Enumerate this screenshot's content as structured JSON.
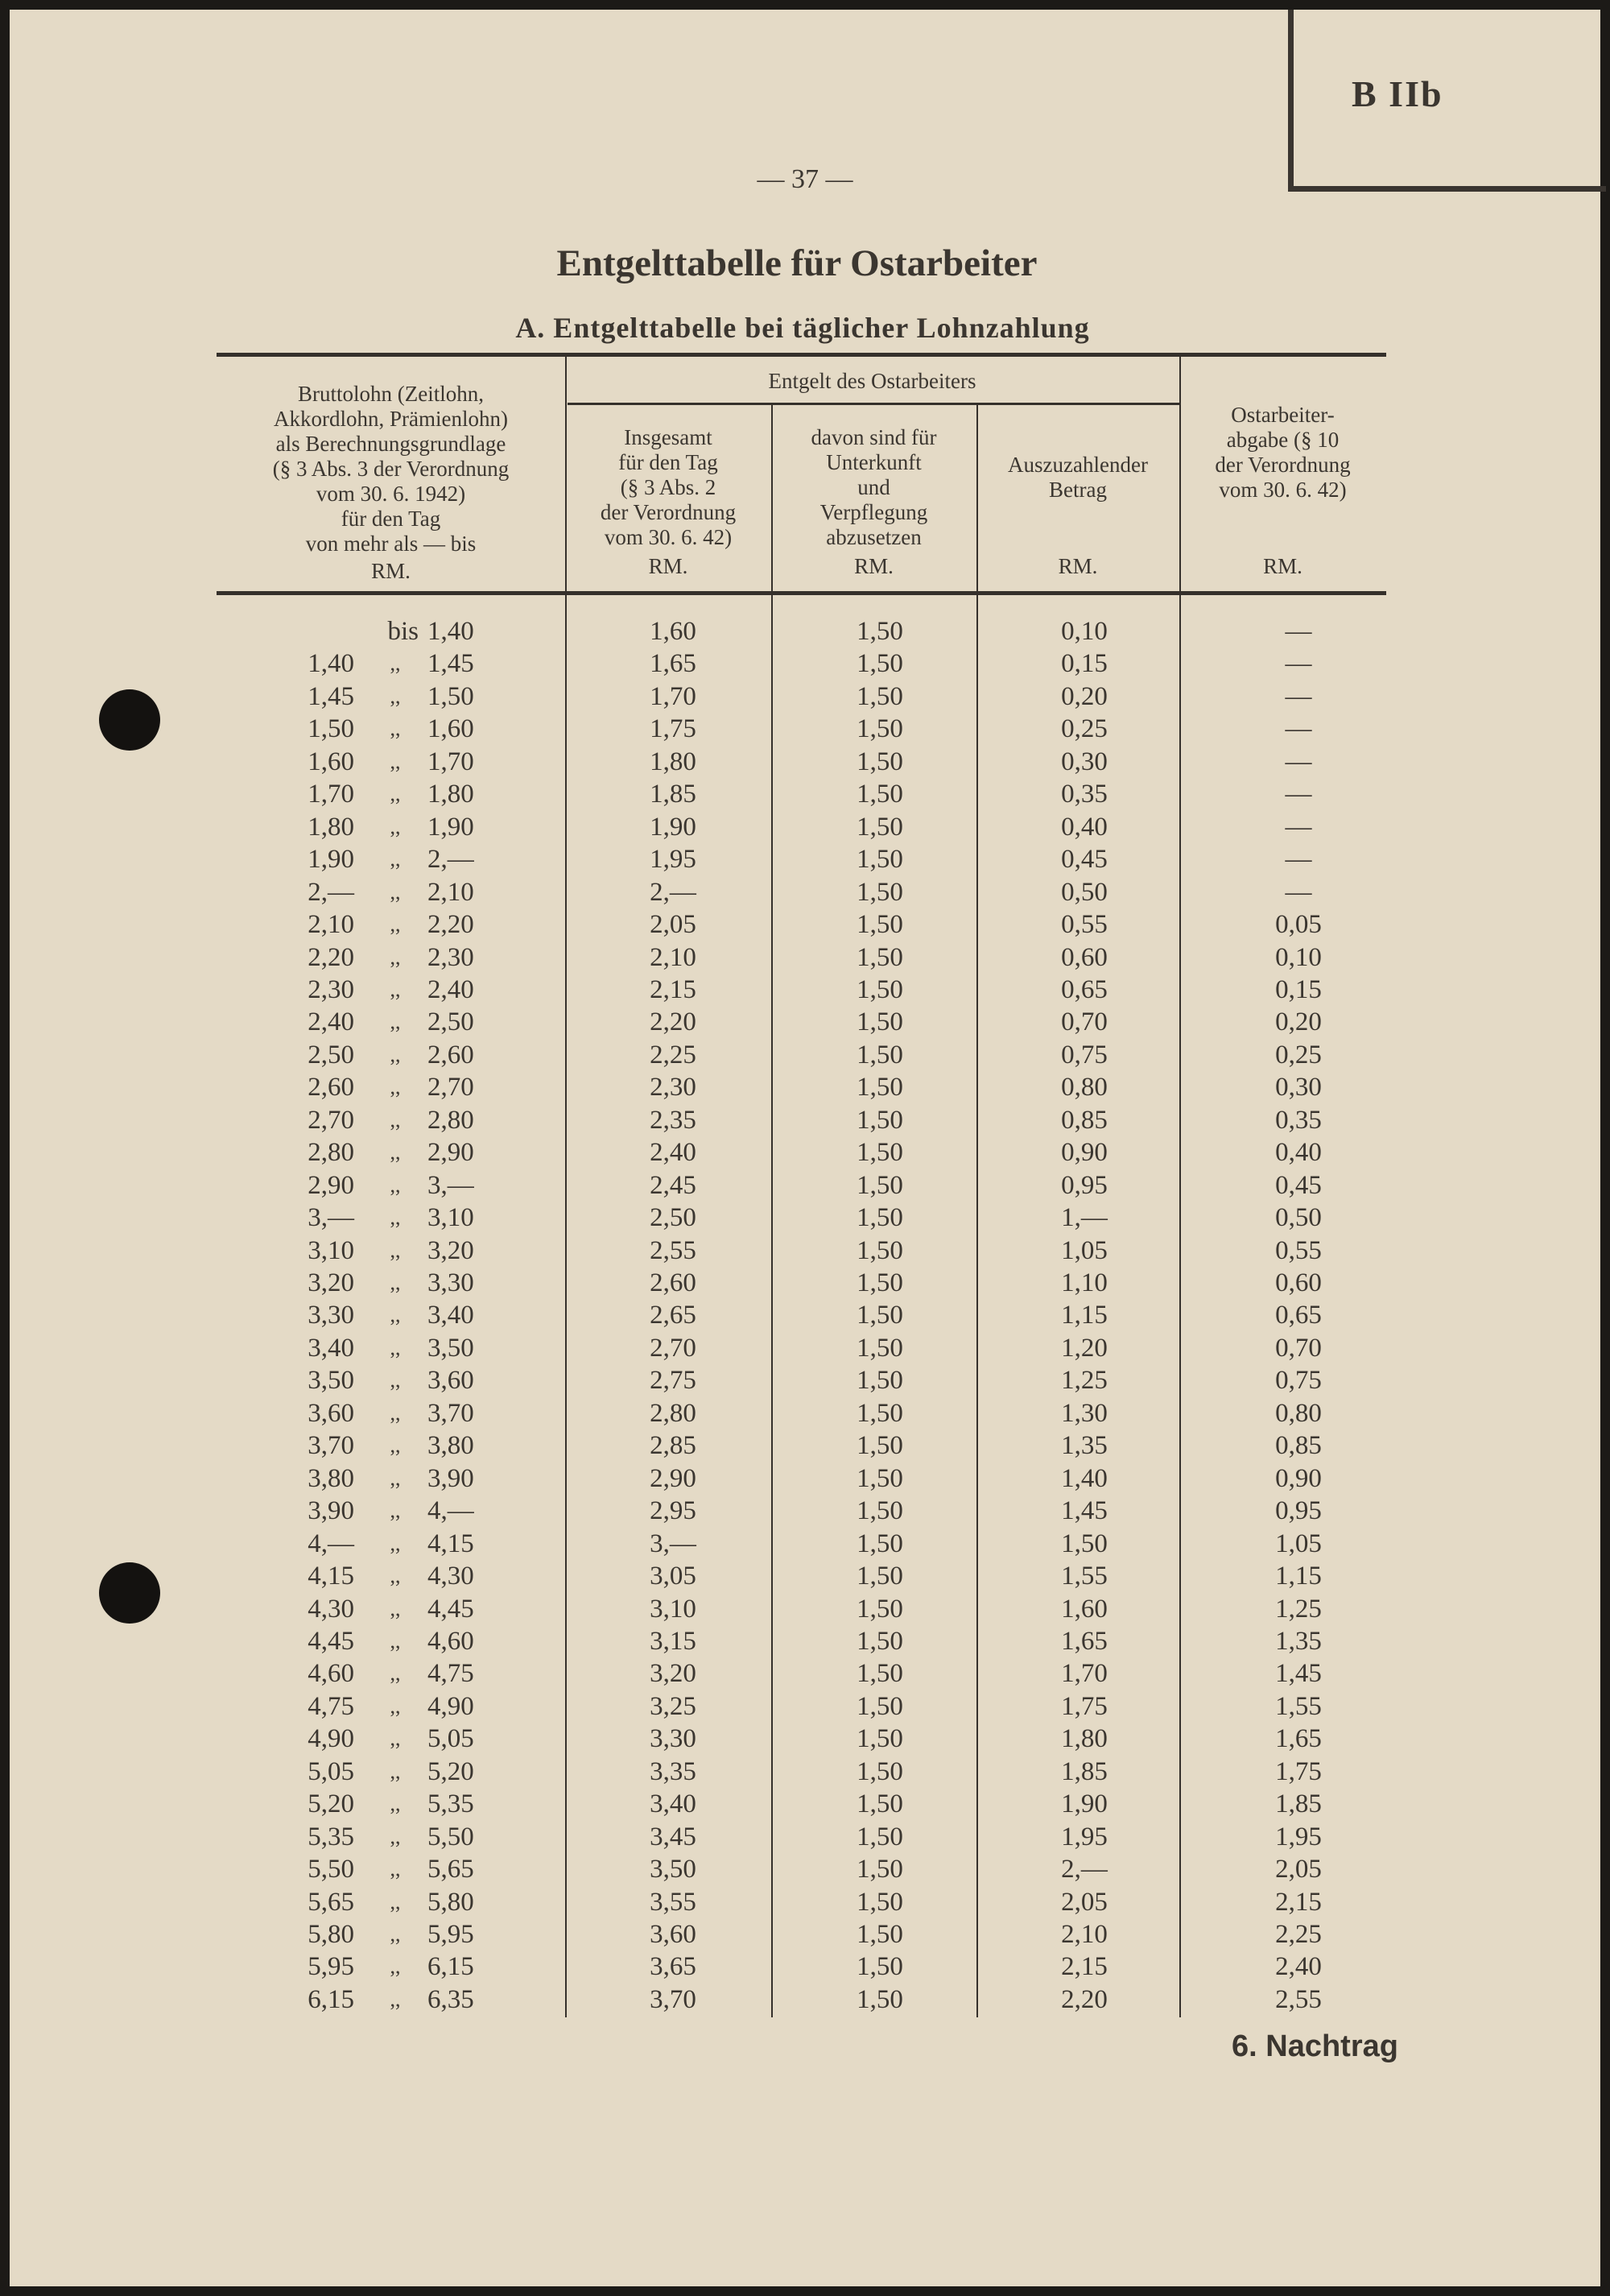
{
  "corner_label": "B IIb",
  "page_number": "— 37 —",
  "title": "Entgelttabelle für Ostarbeiter",
  "subtitle": "A. Entgelttabelle bei täglicher Lohnzahlung",
  "footer": "6. Nachtrag",
  "table": {
    "group_header": "Entgelt des Ostarbeiters",
    "columns": [
      {
        "lines": [
          "Bruttolohn (Zeitlohn,",
          "Akkordlohn, Prämienlohn)",
          "als  Berechnungsgrundlage",
          "(§ 3 Abs. 3 der Verordnung",
          "vom 30. 6. 1942)",
          "für den Tag",
          "von mehr als — bis"
        ],
        "unit": "RM."
      },
      {
        "lines": [
          "Insgesamt",
          "für den Tag",
          "(§ 3 Abs. 2",
          "der Verordnung",
          "vom 30. 6. 42)"
        ],
        "unit": "RM."
      },
      {
        "lines": [
          "davon sind für",
          "Unterkunft",
          "und",
          "Verpflegung",
          "abzusetzen"
        ],
        "unit": "RM."
      },
      {
        "lines": [
          "Auszuzahlender",
          "Betrag"
        ],
        "unit": "RM."
      },
      {
        "lines": [
          "Ostarbeiter-",
          "abgabe (§ 10",
          "der Verordnung",
          "vom 30. 6. 42)"
        ],
        "unit": "RM."
      }
    ],
    "rows": [
      [
        "",
        "bis",
        "1,40",
        "1,60",
        "1,50",
        "0,10",
        "—"
      ],
      [
        "1,40",
        ",,",
        "1,45",
        "1,65",
        "1,50",
        "0,15",
        "—"
      ],
      [
        "1,45",
        ",,",
        "1,50",
        "1,70",
        "1,50",
        "0,20",
        "—"
      ],
      [
        "1,50",
        ",,",
        "1,60",
        "1,75",
        "1,50",
        "0,25",
        "—"
      ],
      [
        "1,60",
        ",,",
        "1,70",
        "1,80",
        "1,50",
        "0,30",
        "—"
      ],
      [
        "1,70",
        ",,",
        "1,80",
        "1,85",
        "1,50",
        "0,35",
        "—"
      ],
      [
        "1,80",
        ",,",
        "1,90",
        "1,90",
        "1,50",
        "0,40",
        "—"
      ],
      [
        "1,90",
        ",,",
        "2,—",
        "1,95",
        "1,50",
        "0,45",
        "—"
      ],
      [
        "2,—",
        ",,",
        "2,10",
        "2,—",
        "1,50",
        "0,50",
        "—"
      ],
      [
        "2,10",
        ",,",
        "2,20",
        "2,05",
        "1,50",
        "0,55",
        "0,05"
      ],
      [
        "2,20",
        ",,",
        "2,30",
        "2,10",
        "1,50",
        "0,60",
        "0,10"
      ],
      [
        "2,30",
        ",,",
        "2,40",
        "2,15",
        "1,50",
        "0,65",
        "0,15"
      ],
      [
        "2,40",
        ",,",
        "2,50",
        "2,20",
        "1,50",
        "0,70",
        "0,20"
      ],
      [
        "2,50",
        ",,",
        "2,60",
        "2,25",
        "1,50",
        "0,75",
        "0,25"
      ],
      [
        "2,60",
        ",,",
        "2,70",
        "2,30",
        "1,50",
        "0,80",
        "0,30"
      ],
      [
        "2,70",
        ",,",
        "2,80",
        "2,35",
        "1,50",
        "0,85",
        "0,35"
      ],
      [
        "2,80",
        ",,",
        "2,90",
        "2,40",
        "1,50",
        "0,90",
        "0,40"
      ],
      [
        "2,90",
        ",,",
        "3,—",
        "2,45",
        "1,50",
        "0,95",
        "0,45"
      ],
      [
        "3,—",
        ",,",
        "3,10",
        "2,50",
        "1,50",
        "1,—",
        "0,50"
      ],
      [
        "3,10",
        ",,",
        "3,20",
        "2,55",
        "1,50",
        "1,05",
        "0,55"
      ],
      [
        "3,20",
        ",,",
        "3,30",
        "2,60",
        "1,50",
        "1,10",
        "0,60"
      ],
      [
        "3,30",
        ",,",
        "3,40",
        "2,65",
        "1,50",
        "1,15",
        "0,65"
      ],
      [
        "3,40",
        ",,",
        "3,50",
        "2,70",
        "1,50",
        "1,20",
        "0,70"
      ],
      [
        "3,50",
        ",,",
        "3,60",
        "2,75",
        "1,50",
        "1,25",
        "0,75"
      ],
      [
        "3,60",
        ",,",
        "3,70",
        "2,80",
        "1,50",
        "1,30",
        "0,80"
      ],
      [
        "3,70",
        ",,",
        "3,80",
        "2,85",
        "1,50",
        "1,35",
        "0,85"
      ],
      [
        "3,80",
        ",,",
        "3,90",
        "2,90",
        "1,50",
        "1,40",
        "0,90"
      ],
      [
        "3,90",
        ",,",
        "4,—",
        "2,95",
        "1,50",
        "1,45",
        "0,95"
      ],
      [
        "4,—",
        ",,",
        "4,15",
        "3,—",
        "1,50",
        "1,50",
        "1,05"
      ],
      [
        "4,15",
        ",,",
        "4,30",
        "3,05",
        "1,50",
        "1,55",
        "1,15"
      ],
      [
        "4,30",
        ",,",
        "4,45",
        "3,10",
        "1,50",
        "1,60",
        "1,25"
      ],
      [
        "4,45",
        ",,",
        "4,60",
        "3,15",
        "1,50",
        "1,65",
        "1,35"
      ],
      [
        "4,60",
        ",,",
        "4,75",
        "3,20",
        "1,50",
        "1,70",
        "1,45"
      ],
      [
        "4,75",
        ",,",
        "4,90",
        "3,25",
        "1,50",
        "1,75",
        "1,55"
      ],
      [
        "4,90",
        ",,",
        "5,05",
        "3,30",
        "1,50",
        "1,80",
        "1,65"
      ],
      [
        "5,05",
        ",,",
        "5,20",
        "3,35",
        "1,50",
        "1,85",
        "1,75"
      ],
      [
        "5,20",
        ",,",
        "5,35",
        "3,40",
        "1,50",
        "1,90",
        "1,85"
      ],
      [
        "5,35",
        ",,",
        "5,50",
        "3,45",
        "1,50",
        "1,95",
        "1,95"
      ],
      [
        "5,50",
        ",,",
        "5,65",
        "3,50",
        "1,50",
        "2,—",
        "2,05"
      ],
      [
        "5,65",
        ",,",
        "5,80",
        "3,55",
        "1,50",
        "2,05",
        "2,15"
      ],
      [
        "5,80",
        ",,",
        "5,95",
        "3,60",
        "1,50",
        "2,10",
        "2,25"
      ],
      [
        "5,95",
        ",,",
        "6,15",
        "3,65",
        "1,50",
        "2,15",
        "2,40"
      ],
      [
        "6,15",
        ",,",
        "6,35",
        "3,70",
        "1,50",
        "2,20",
        "2,55"
      ]
    ]
  }
}
